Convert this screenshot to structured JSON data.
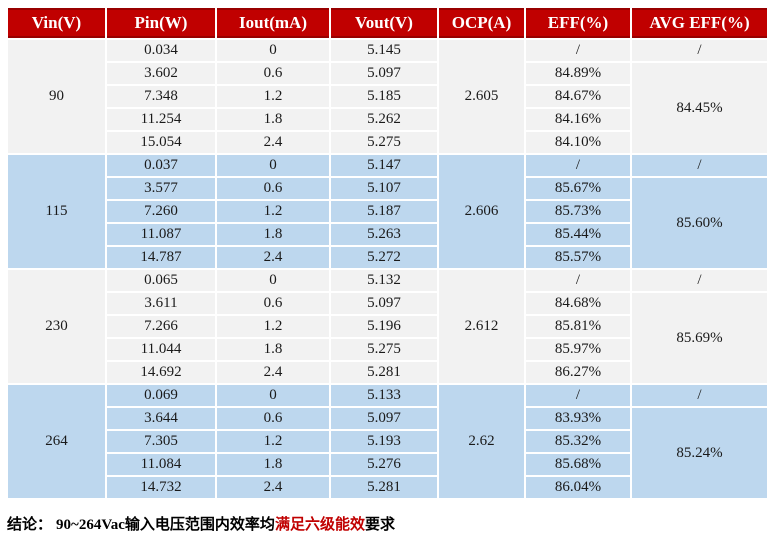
{
  "colors": {
    "header_bg": "#C00000",
    "header_border": "#980000",
    "header_text": "#FFFFFF",
    "group_light_bg": "#F2F2F2",
    "group_blue_bg": "#BDD7EE",
    "body_text": "#1A1A1A",
    "conclusion_highlight": "#C00000"
  },
  "table": {
    "columns": [
      "Vin(V)",
      "Pin(W)",
      "Iout(mA)",
      "Vout(V)",
      "OCP(A)",
      "EFF(%)",
      "AVG EFF(%)"
    ],
    "groups": [
      {
        "vin": "90",
        "ocp": "2.605",
        "avg_eff_first": "/",
        "avg_eff": "84.45%",
        "rows": [
          {
            "pin": "0.034",
            "iout": "0",
            "vout": "5.145",
            "eff": "/"
          },
          {
            "pin": "3.602",
            "iout": "0.6",
            "vout": "5.097",
            "eff": "84.89%"
          },
          {
            "pin": "7.348",
            "iout": "1.2",
            "vout": "5.185",
            "eff": "84.67%"
          },
          {
            "pin": "11.254",
            "iout": "1.8",
            "vout": "5.262",
            "eff": "84.16%"
          },
          {
            "pin": "15.054",
            "iout": "2.4",
            "vout": "5.275",
            "eff": "84.10%"
          }
        ]
      },
      {
        "vin": "115",
        "ocp": "2.606",
        "avg_eff_first": "/",
        "avg_eff": "85.60%",
        "rows": [
          {
            "pin": "0.037",
            "iout": "0",
            "vout": "5.147",
            "eff": "/"
          },
          {
            "pin": "3.577",
            "iout": "0.6",
            "vout": "5.107",
            "eff": "85.67%"
          },
          {
            "pin": "7.260",
            "iout": "1.2",
            "vout": "5.187",
            "eff": "85.73%"
          },
          {
            "pin": "11.087",
            "iout": "1.8",
            "vout": "5.263",
            "eff": "85.44%"
          },
          {
            "pin": "14.787",
            "iout": "2.4",
            "vout": "5.272",
            "eff": "85.57%"
          }
        ]
      },
      {
        "vin": "230",
        "ocp": "2.612",
        "avg_eff_first": "/",
        "avg_eff": "85.69%",
        "rows": [
          {
            "pin": "0.065",
            "iout": "0",
            "vout": "5.132",
            "eff": "/"
          },
          {
            "pin": "3.611",
            "iout": "0.6",
            "vout": "5.097",
            "eff": "84.68%"
          },
          {
            "pin": "7.266",
            "iout": "1.2",
            "vout": "5.196",
            "eff": "85.81%"
          },
          {
            "pin": "11.044",
            "iout": "1.8",
            "vout": "5.275",
            "eff": "85.97%"
          },
          {
            "pin": "14.692",
            "iout": "2.4",
            "vout": "5.281",
            "eff": "86.27%"
          }
        ]
      },
      {
        "vin": "264",
        "ocp": "2.62",
        "avg_eff_first": "/",
        "avg_eff": "85.24%",
        "rows": [
          {
            "pin": "0.069",
            "iout": "0",
            "vout": "5.133",
            "eff": "/"
          },
          {
            "pin": "3.644",
            "iout": "0.6",
            "vout": "5.097",
            "eff": "83.93%"
          },
          {
            "pin": "7.305",
            "iout": "1.2",
            "vout": "5.193",
            "eff": "85.32%"
          },
          {
            "pin": "11.084",
            "iout": "1.8",
            "vout": "5.276",
            "eff": "85.68%"
          },
          {
            "pin": "14.732",
            "iout": "2.4",
            "vout": "5.281",
            "eff": "86.04%"
          }
        ]
      }
    ]
  },
  "conclusion": {
    "label": "结论：",
    "pre": "90~264Vac输入电压范围内效率均",
    "highlight": "满足六级能效",
    "post": "要求"
  }
}
